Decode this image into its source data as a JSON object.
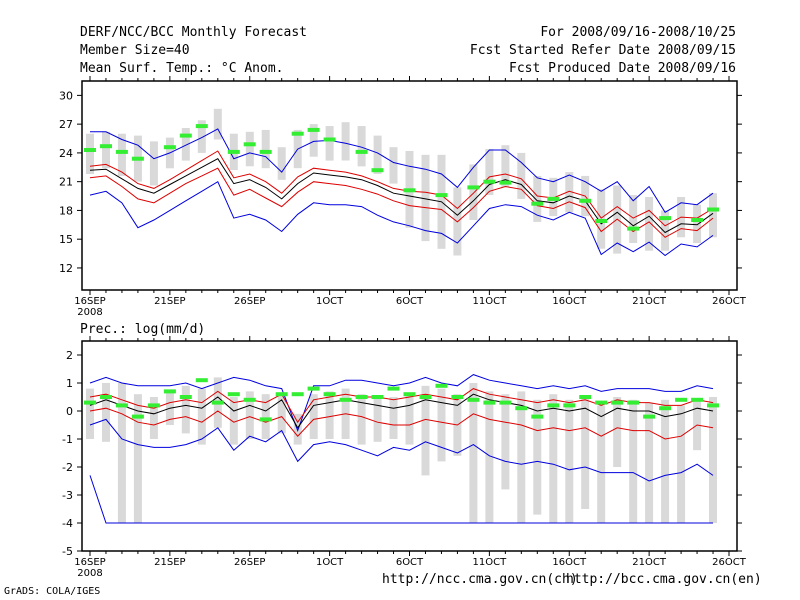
{
  "header": {
    "title": "DERF/NCC/BCC Monthly Forecast",
    "member_size": "Member Size=40",
    "variable": "Mean Surf. Temp.: °C Anom.",
    "period": "For 2008/09/16-2008/10/25",
    "refer_date": "Fcst Started Refer Date 2008/09/15",
    "produced_date": "Fcst Produced Date 2008/09/16"
  },
  "footer": {
    "grads": "GrADS: COLA/IGES",
    "ncc_url": "http://ncc.cma.gov.cn(ch)",
    "bcc_url": "http://bcc.cma.gov.cn(en)"
  },
  "colors": {
    "envelope": "#0000dd",
    "spread": "#dd0000",
    "mean": "#000000",
    "box": "#d9d9d9",
    "obs": "#33ee33"
  },
  "chart_data": [
    {
      "type": "line",
      "title": "Mean Surf. Temp.: °C Anom.",
      "x": [
        1,
        2,
        3,
        4,
        5,
        6,
        7,
        8,
        9,
        10,
        11,
        12,
        13,
        14,
        15,
        16,
        17,
        18,
        19,
        20,
        21,
        22,
        23,
        24,
        25,
        26,
        27,
        28,
        29,
        30,
        31,
        32,
        33,
        34,
        35,
        36,
        37,
        38,
        39,
        40
      ],
      "xtick_labels": [
        "16SEP",
        "21SEP",
        "26SEP",
        "1OCT",
        "6OCT",
        "11OCT",
        "16OCT",
        "21OCT",
        "26OCT"
      ],
      "xtick_positions": [
        1,
        6,
        11,
        16,
        21,
        26,
        31,
        36,
        41
      ],
      "year_label": "2008",
      "ylim": [
        9.7,
        31.5
      ],
      "yticks": [
        12,
        15,
        18,
        21,
        24,
        27,
        30
      ],
      "series": [
        {
          "name": "max",
          "values": [
            26.2,
            26.2,
            25.4,
            24.8,
            23.4,
            24.0,
            24.8,
            25.6,
            26.5,
            23.4,
            24.0,
            23.6,
            22.0,
            24.4,
            25.2,
            25.3,
            25.0,
            24.6,
            24.0,
            23.0,
            22.6,
            22.3,
            21.8,
            20.4,
            22.5,
            24.3,
            24.3,
            23.0,
            21.4,
            21.0,
            21.7,
            21.0,
            20.0,
            21.0,
            19.0,
            20.5,
            17.8,
            18.8,
            18.6,
            19.8
          ]
        },
        {
          "name": "upper",
          "values": [
            22.6,
            22.8,
            22.0,
            20.8,
            20.3,
            21.2,
            22.2,
            23.2,
            24.2,
            21.4,
            21.8,
            21.0,
            19.8,
            21.5,
            22.4,
            22.2,
            22.0,
            21.6,
            21.0,
            20.3,
            20.0,
            19.9,
            19.6,
            18.2,
            19.8,
            21.5,
            21.8,
            21.3,
            19.5,
            19.3,
            20.0,
            19.5,
            17.2,
            18.4,
            17.2,
            18.0,
            16.4,
            17.3,
            17.2,
            18.2
          ]
        },
        {
          "name": "mean",
          "values": [
            22.2,
            22.3,
            21.3,
            20.3,
            19.8,
            20.7,
            21.6,
            22.5,
            23.4,
            20.8,
            21.2,
            20.4,
            19.2,
            20.8,
            21.9,
            21.7,
            21.5,
            21.2,
            20.6,
            19.8,
            19.5,
            19.2,
            18.9,
            17.5,
            19.0,
            20.7,
            21.2,
            20.7,
            19.0,
            18.8,
            19.5,
            19.0,
            16.6,
            17.8,
            16.4,
            17.4,
            15.7,
            16.6,
            16.5,
            17.7
          ]
        },
        {
          "name": "lower",
          "values": [
            21.4,
            21.6,
            20.5,
            19.2,
            18.8,
            19.8,
            20.8,
            21.6,
            22.4,
            19.6,
            20.2,
            19.3,
            18.4,
            19.9,
            21.0,
            20.8,
            20.6,
            20.2,
            19.7,
            19.0,
            18.5,
            18.3,
            18.1,
            16.8,
            18.3,
            20.0,
            20.5,
            20.2,
            18.5,
            18.2,
            18.9,
            18.3,
            15.8,
            17.1,
            15.8,
            16.8,
            15.2,
            16.1,
            15.9,
            17.2
          ]
        },
        {
          "name": "min",
          "values": [
            19.6,
            20.0,
            18.8,
            16.2,
            17.0,
            18.0,
            19.0,
            20.0,
            21.0,
            17.2,
            17.6,
            17.0,
            15.8,
            17.6,
            18.8,
            18.6,
            18.6,
            18.4,
            17.5,
            16.8,
            16.4,
            15.9,
            15.6,
            14.6,
            16.4,
            18.2,
            18.6,
            18.4,
            17.5,
            17.0,
            17.8,
            17.2,
            13.4,
            14.6,
            13.7,
            14.7,
            13.3,
            14.5,
            14.2,
            15.4
          ]
        },
        {
          "name": "box_top",
          "values": [
            26.0,
            26.2,
            26.0,
            25.8,
            25.2,
            25.6,
            26.6,
            27.4,
            28.6,
            26.0,
            26.2,
            26.4,
            24.6,
            26.4,
            27.0,
            26.8,
            27.2,
            26.8,
            25.8,
            24.6,
            24.2,
            23.8,
            23.8,
            20.4,
            22.8,
            24.4,
            24.8,
            24.0,
            21.6,
            21.4,
            22.0,
            21.6,
            20.2,
            20.6,
            19.6,
            19.4,
            18.0,
            19.4,
            18.6,
            19.8
          ]
        },
        {
          "name": "box_bottom",
          "values": [
            21.8,
            22.4,
            21.6,
            21.0,
            20.6,
            22.4,
            23.2,
            24.0,
            25.4,
            22.2,
            22.6,
            22.4,
            21.2,
            22.4,
            23.6,
            23.2,
            23.2,
            22.6,
            21.8,
            20.8,
            16.2,
            14.8,
            14.0,
            13.3,
            17.0,
            19.6,
            20.4,
            19.2,
            16.8,
            17.4,
            17.8,
            17.4,
            14.0,
            13.5,
            14.6,
            13.8,
            13.8,
            15.2,
            14.6,
            15.2
          ]
        },
        {
          "name": "observed",
          "values": [
            24.3,
            24.7,
            24.1,
            23.4,
            null,
            24.6,
            25.8,
            26.8,
            null,
            24.1,
            24.9,
            24.1,
            null,
            26.0,
            26.4,
            25.4,
            null,
            24.1,
            22.2,
            null,
            20.1,
            null,
            19.6,
            null,
            20.4,
            21.0,
            20.9,
            null,
            18.7,
            19.2,
            null,
            19.0,
            16.9,
            null,
            16.1,
            null,
            17.2,
            null,
            17.0,
            18.1
          ]
        }
      ]
    },
    {
      "type": "line",
      "title": "Prec.: log(mm/d)",
      "x": [
        1,
        2,
        3,
        4,
        5,
        6,
        7,
        8,
        9,
        10,
        11,
        12,
        13,
        14,
        15,
        16,
        17,
        18,
        19,
        20,
        21,
        22,
        23,
        24,
        25,
        26,
        27,
        28,
        29,
        30,
        31,
        32,
        33,
        34,
        35,
        36,
        37,
        38,
        39,
        40
      ],
      "xtick_labels": [
        "16SEP",
        "21SEP",
        "26SEP",
        "1OCT",
        "6OCT",
        "11OCT",
        "16OCT",
        "21OCT",
        "26OCT"
      ],
      "xtick_positions": [
        1,
        6,
        11,
        16,
        21,
        26,
        31,
        36,
        41
      ],
      "year_label": "2008",
      "ylim": [
        -5,
        2.5
      ],
      "yticks": [
        -5,
        -4,
        -3,
        -2,
        -1,
        0,
        1,
        2
      ],
      "series": [
        {
          "name": "max",
          "values": [
            1.0,
            1.2,
            1.0,
            0.9,
            0.9,
            0.9,
            1.0,
            0.8,
            1.0,
            1.2,
            1.1,
            0.9,
            0.8,
            -0.7,
            0.9,
            0.9,
            1.1,
            1.1,
            1.0,
            0.9,
            1.0,
            1.2,
            1.0,
            0.9,
            1.3,
            1.1,
            1.0,
            0.9,
            0.8,
            0.9,
            0.8,
            0.9,
            0.7,
            0.8,
            0.8,
            0.8,
            0.7,
            0.7,
            0.9,
            0.8
          ]
        },
        {
          "name": "upper",
          "values": [
            0.5,
            0.6,
            0.4,
            0.2,
            0.1,
            0.3,
            0.4,
            0.3,
            0.7,
            0.3,
            0.4,
            0.3,
            0.6,
            -0.4,
            0.4,
            0.5,
            0.6,
            0.5,
            0.5,
            0.4,
            0.5,
            0.6,
            0.5,
            0.4,
            0.8,
            0.6,
            0.5,
            0.4,
            0.3,
            0.4,
            0.3,
            0.4,
            0.2,
            0.4,
            0.3,
            0.3,
            0.2,
            0.2,
            0.4,
            0.3
          ]
        },
        {
          "name": "mean",
          "values": [
            0.2,
            0.4,
            0.2,
            0.0,
            -0.1,
            0.1,
            0.2,
            0.1,
            0.5,
            0.0,
            0.2,
            0.0,
            0.4,
            -0.6,
            0.2,
            0.3,
            0.4,
            0.3,
            0.2,
            0.1,
            0.2,
            0.4,
            0.3,
            0.2,
            0.6,
            0.4,
            0.3,
            0.2,
            0.0,
            0.1,
            0.0,
            0.1,
            -0.2,
            0.1,
            0.0,
            0.0,
            -0.2,
            -0.1,
            0.1,
            0.0
          ]
        },
        {
          "name": "lower",
          "values": [
            0.0,
            0.1,
            -0.1,
            -0.4,
            -0.5,
            -0.3,
            -0.2,
            -0.4,
            0.0,
            -0.4,
            -0.2,
            -0.4,
            -0.2,
            -0.9,
            -0.3,
            -0.2,
            -0.1,
            -0.2,
            -0.4,
            -0.5,
            -0.5,
            -0.3,
            -0.4,
            -0.5,
            -0.1,
            -0.3,
            -0.4,
            -0.5,
            -0.7,
            -0.6,
            -0.7,
            -0.6,
            -0.9,
            -0.6,
            -0.7,
            -0.7,
            -1.0,
            -0.9,
            -0.5,
            -0.6
          ]
        },
        {
          "name": "min",
          "values": [
            -0.5,
            -0.3,
            -1.0,
            -1.2,
            -1.3,
            -1.3,
            -1.2,
            -1.0,
            -0.6,
            -1.4,
            -0.9,
            -1.1,
            -0.7,
            -1.8,
            -1.2,
            -1.1,
            -1.2,
            -1.4,
            -1.6,
            -1.3,
            -1.4,
            -1.1,
            -1.3,
            -1.5,
            -1.2,
            -1.6,
            -1.8,
            -1.9,
            -1.8,
            -1.9,
            -2.1,
            -2.0,
            -2.2,
            -2.2,
            -2.2,
            -2.5,
            -2.3,
            -2.2,
            -1.9,
            -2.3
          ]
        },
        {
          "name": "floor",
          "values": [
            -2.3,
            -4.0,
            -4.0,
            -4.0,
            -4.0,
            -4.0,
            -4.0,
            -4.0,
            -4.0,
            -4.0,
            -4.0,
            -4.0,
            -4.0,
            -4.0,
            -4.0,
            -4.0,
            -4.0,
            -4.0,
            -4.0,
            -4.0,
            -4.0,
            -4.0,
            -4.0,
            -4.0,
            -4.0,
            -4.0,
            -4.0,
            -4.0,
            -4.0,
            -4.0,
            -4.0,
            -4.0,
            -4.0,
            -4.0,
            -4.0,
            -4.0,
            -4.0,
            -4.0,
            -4.0,
            -4.0
          ]
        },
        {
          "name": "box_top",
          "values": [
            0.8,
            1.0,
            1.0,
            0.6,
            0.5,
            0.7,
            0.9,
            0.8,
            1.2,
            0.5,
            0.7,
            0.6,
            0.6,
            -0.1,
            0.6,
            0.7,
            0.8,
            0.6,
            0.5,
            0.5,
            0.6,
            0.9,
            0.8,
            0.6,
            1.0,
            0.7,
            0.6,
            0.7,
            0.4,
            0.6,
            0.4,
            0.5,
            0.2,
            0.5,
            0.4,
            0.3,
            0.4,
            0.2,
            0.4,
            0.5
          ]
        },
        {
          "name": "box_bottom",
          "values": [
            -1.0,
            -1.1,
            -4.0,
            -4.0,
            -1.0,
            -0.5,
            -0.8,
            -1.2,
            -0.6,
            -1.2,
            -1.0,
            -1.0,
            -0.8,
            -1.2,
            -1.0,
            -1.0,
            -1.0,
            -1.2,
            -1.1,
            -1.0,
            -1.2,
            -2.3,
            -1.8,
            -1.6,
            -4.0,
            -4.0,
            -2.8,
            -4.0,
            -3.7,
            -4.0,
            -4.0,
            -3.5,
            -4.0,
            -2.0,
            -4.0,
            -4.0,
            -4.0,
            -4.0,
            -1.4,
            -4.0
          ]
        },
        {
          "name": "observed",
          "values": [
            0.3,
            0.5,
            0.2,
            -0.2,
            0.2,
            0.7,
            0.5,
            1.1,
            0.3,
            0.6,
            0.4,
            -0.3,
            0.6,
            0.6,
            0.8,
            0.6,
            0.4,
            0.5,
            0.5,
            0.8,
            0.6,
            0.5,
            0.9,
            0.5,
            0.4,
            0.3,
            0.3,
            0.1,
            -0.2,
            0.2,
            0.2,
            0.5,
            0.3,
            0.3,
            0.3,
            -0.2,
            0.1,
            0.4,
            0.4,
            0.2
          ]
        }
      ]
    }
  ]
}
